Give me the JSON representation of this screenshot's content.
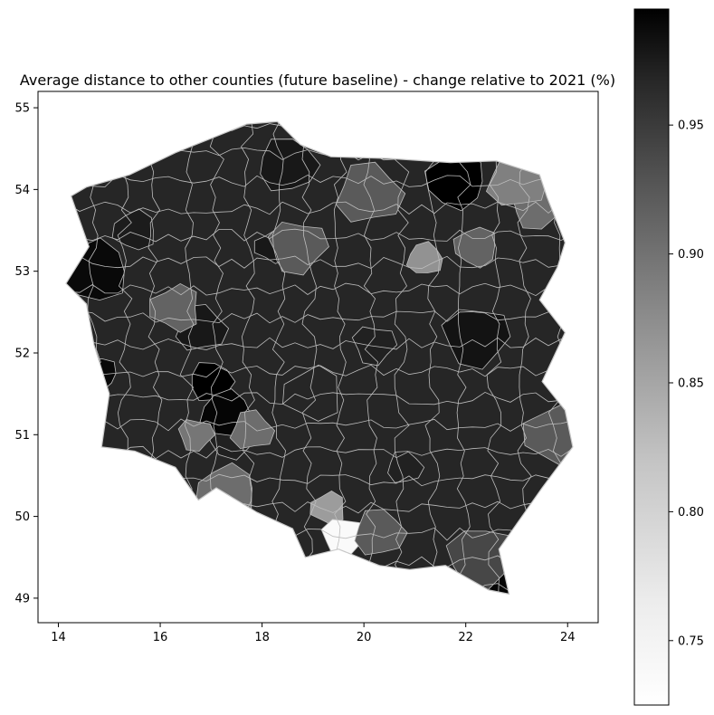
{
  "chart_data": {
    "type": "choropleth",
    "title": "Average distance to other counties (future baseline) - change relative to 2021 (%)",
    "xlabel": "",
    "ylabel": "",
    "xlim": [
      13.6,
      24.6
    ],
    "ylim": [
      48.7,
      55.2
    ],
    "x_ticks": [
      14,
      16,
      18,
      20,
      22,
      24
    ],
    "x_tick_labels": [
      "14",
      "16",
      "18",
      "20",
      "22",
      "24"
    ],
    "y_ticks": [
      49,
      50,
      51,
      52,
      53,
      54,
      55
    ],
    "y_tick_labels": [
      "49",
      "50",
      "51",
      "52",
      "53",
      "54",
      "55"
    ],
    "colorbar": {
      "range": [
        0.725,
        0.995
      ],
      "colormap": "Greys",
      "ticks": [
        0.75,
        0.8,
        0.85,
        0.9,
        0.95
      ],
      "tick_labels": [
        "0.75",
        "0.80",
        "0.85",
        "0.90",
        "0.95"
      ],
      "position": "right"
    },
    "region_outline": [
      [
        14.25,
        53.92
      ],
      [
        14.55,
        54.03
      ],
      [
        15.4,
        54.18
      ],
      [
        16.3,
        54.45
      ],
      [
        16.9,
        54.6
      ],
      [
        17.7,
        54.8
      ],
      [
        18.3,
        54.83
      ],
      [
        18.75,
        54.55
      ],
      [
        19.35,
        54.4
      ],
      [
        20.5,
        54.38
      ],
      [
        21.7,
        54.33
      ],
      [
        22.6,
        54.35
      ],
      [
        23.45,
        54.18
      ],
      [
        23.6,
        53.9
      ],
      [
        23.95,
        53.35
      ],
      [
        23.8,
        53.05
      ],
      [
        23.45,
        52.65
      ],
      [
        23.95,
        52.25
      ],
      [
        23.5,
        51.65
      ],
      [
        23.95,
        51.3
      ],
      [
        24.1,
        50.85
      ],
      [
        23.5,
        50.35
      ],
      [
        22.65,
        49.6
      ],
      [
        22.85,
        49.05
      ],
      [
        22.45,
        49.1
      ],
      [
        21.6,
        49.4
      ],
      [
        20.9,
        49.35
      ],
      [
        20.3,
        49.4
      ],
      [
        19.5,
        49.6
      ],
      [
        18.85,
        49.5
      ],
      [
        18.6,
        49.85
      ],
      [
        17.9,
        50.05
      ],
      [
        17.1,
        50.35
      ],
      [
        16.75,
        50.2
      ],
      [
        16.3,
        50.6
      ],
      [
        15.5,
        50.8
      ],
      [
        14.85,
        50.85
      ],
      [
        15.0,
        51.5
      ],
      [
        14.7,
        52.1
      ],
      [
        14.55,
        52.6
      ],
      [
        14.15,
        52.85
      ],
      [
        14.6,
        53.3
      ],
      [
        14.25,
        53.92
      ]
    ],
    "regions": [
      {
        "lon": 18.2,
        "lat": 53.3,
        "value": 0.97
      },
      {
        "lon": 20.2,
        "lat": 52.1,
        "value": 0.96
      },
      {
        "lon": 16.8,
        "lat": 52.3,
        "value": 0.97
      },
      {
        "lon": 19.0,
        "lat": 51.5,
        "value": 0.955
      },
      {
        "lon": 22.2,
        "lat": 52.2,
        "value": 0.975
      },
      {
        "lon": 20.8,
        "lat": 50.6,
        "value": 0.96
      },
      {
        "lon": 15.5,
        "lat": 53.5,
        "value": 0.965
      },
      {
        "lon": 17.4,
        "lat": 51.0,
        "value": 0.96
      },
      {
        "lon": 18.5,
        "lat": 54.3,
        "value": 0.97
      },
      {
        "lon": 14.7,
        "lat": 53.0,
        "value": 0.985
      },
      {
        "lon": 14.8,
        "lat": 51.75,
        "value": 0.985
      },
      {
        "lon": 17.0,
        "lat": 51.65,
        "value": 0.995
      },
      {
        "lon": 17.3,
        "lat": 51.25,
        "value": 0.99
      },
      {
        "lon": 21.8,
        "lat": 54.1,
        "value": 0.995
      },
      {
        "lon": 22.7,
        "lat": 49.4,
        "value": 0.99
      },
      {
        "lon": 21.2,
        "lat": 53.15,
        "value": 0.84
      },
      {
        "lon": 22.2,
        "lat": 53.3,
        "value": 0.89
      },
      {
        "lon": 23.4,
        "lat": 53.8,
        "value": 0.88
      },
      {
        "lon": 23.0,
        "lat": 54.1,
        "value": 0.86
      },
      {
        "lon": 23.8,
        "lat": 51.0,
        "value": 0.9
      },
      {
        "lon": 16.7,
        "lat": 51.0,
        "value": 0.87
      },
      {
        "lon": 17.8,
        "lat": 51.05,
        "value": 0.88
      },
      {
        "lon": 16.3,
        "lat": 52.55,
        "value": 0.89
      },
      {
        "lon": 18.7,
        "lat": 53.3,
        "value": 0.9
      },
      {
        "lon": 20.1,
        "lat": 53.95,
        "value": 0.9
      },
      {
        "lon": 19.3,
        "lat": 50.1,
        "value": 0.83
      },
      {
        "lon": 19.6,
        "lat": 49.75,
        "value": 0.73
      },
      {
        "lon": 20.3,
        "lat": 49.8,
        "value": 0.9
      },
      {
        "lon": 17.3,
        "lat": 50.3,
        "value": 0.88
      },
      {
        "lon": 22.3,
        "lat": 49.5,
        "value": 0.92
      }
    ]
  }
}
